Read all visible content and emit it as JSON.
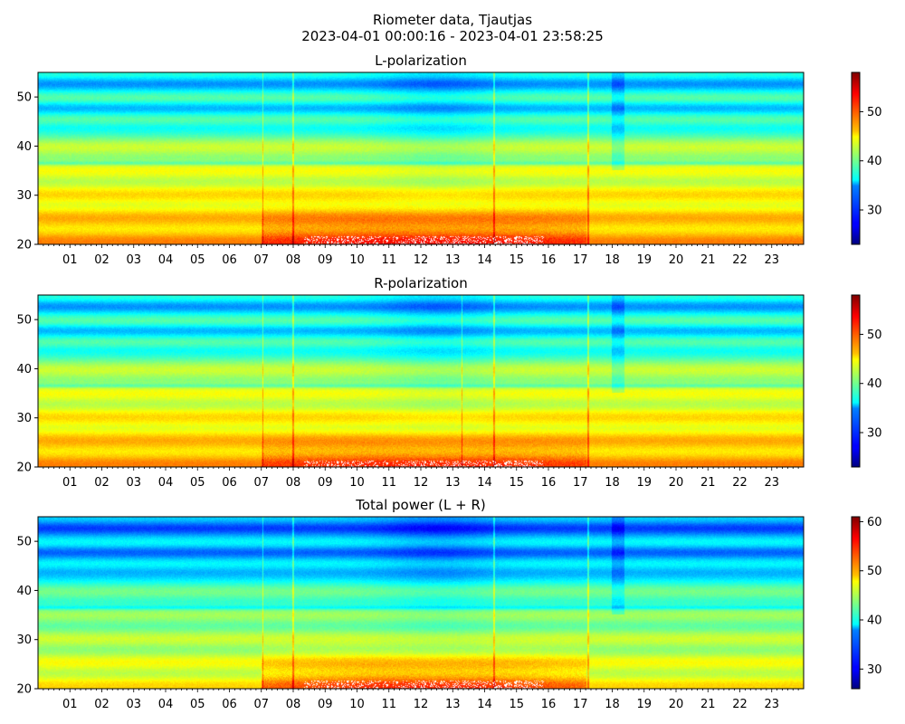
{
  "figure": {
    "title_line1": "Riometer data, Tjautjas",
    "title_line2": "2023-04-01 00:00:16 - 2023-04-01 23:58:25"
  },
  "colormap": "jet",
  "chart_data": [
    {
      "type": "heatmap",
      "title": "L-polarization",
      "x_range_hours": [
        0,
        24
      ],
      "y_range": [
        20,
        55
      ],
      "xticks": [
        "01",
        "02",
        "03",
        "04",
        "05",
        "06",
        "07",
        "08",
        "09",
        "10",
        "11",
        "12",
        "13",
        "14",
        "15",
        "16",
        "17",
        "18",
        "19",
        "20",
        "21",
        "22",
        "23"
      ],
      "yticks": [
        20,
        30,
        40,
        50
      ],
      "colorbar": {
        "range": [
          23,
          58
        ],
        "ticks": [
          30,
          40,
          50
        ]
      },
      "features": {
        "cold_bands_y": [
          44,
          48,
          53
        ],
        "warm_region": {
          "x_hours": [
            7,
            17.2
          ],
          "y": [
            20,
            30
          ],
          "peak_value": 50
        },
        "bright_stripes_x_hours": [
          7.05,
          8.0,
          14.3,
          17.25
        ],
        "dark_region_x_hours": [
          18,
          18.4
        ]
      }
    },
    {
      "type": "heatmap",
      "title": "R-polarization",
      "x_range_hours": [
        0,
        24
      ],
      "y_range": [
        20,
        55
      ],
      "xticks": [
        "01",
        "02",
        "03",
        "04",
        "05",
        "06",
        "07",
        "08",
        "09",
        "10",
        "11",
        "12",
        "13",
        "14",
        "15",
        "16",
        "17",
        "18",
        "19",
        "20",
        "21",
        "22",
        "23"
      ],
      "yticks": [
        20,
        30,
        40,
        50
      ],
      "colorbar": {
        "range": [
          23,
          58
        ],
        "ticks": [
          30,
          40,
          50
        ]
      },
      "features": {
        "cold_bands_y": [
          44,
          48,
          53
        ],
        "warm_region": {
          "x_hours": [
            7,
            17.2
          ],
          "y": [
            20,
            28
          ],
          "peak_value": 49
        },
        "bright_stripes_x_hours": [
          7.05,
          8.0,
          13.3,
          14.3,
          17.25
        ],
        "dark_region_x_hours": [
          18,
          18.4
        ]
      }
    },
    {
      "type": "heatmap",
      "title": "Total power (L + R)",
      "x_range_hours": [
        0,
        24
      ],
      "y_range": [
        20,
        55
      ],
      "xticks": [
        "01",
        "02",
        "03",
        "04",
        "05",
        "06",
        "07",
        "08",
        "09",
        "10",
        "11",
        "12",
        "13",
        "14",
        "15",
        "16",
        "17",
        "18",
        "19",
        "20",
        "21",
        "22",
        "23"
      ],
      "yticks": [
        20,
        30,
        40,
        50
      ],
      "colorbar": {
        "range": [
          26,
          61
        ],
        "ticks": [
          30,
          40,
          50,
          60
        ]
      },
      "features": {
        "cold_bands_y": [
          44,
          48,
          53
        ],
        "warm_region": {
          "x_hours": [
            7,
            17.2
          ],
          "y": [
            20,
            30
          ],
          "peak_value": 52
        },
        "bright_stripes_x_hours": [
          7.05,
          8.0,
          14.3,
          17.25
        ],
        "dark_region_x_hours": [
          18,
          18.4
        ]
      }
    }
  ]
}
